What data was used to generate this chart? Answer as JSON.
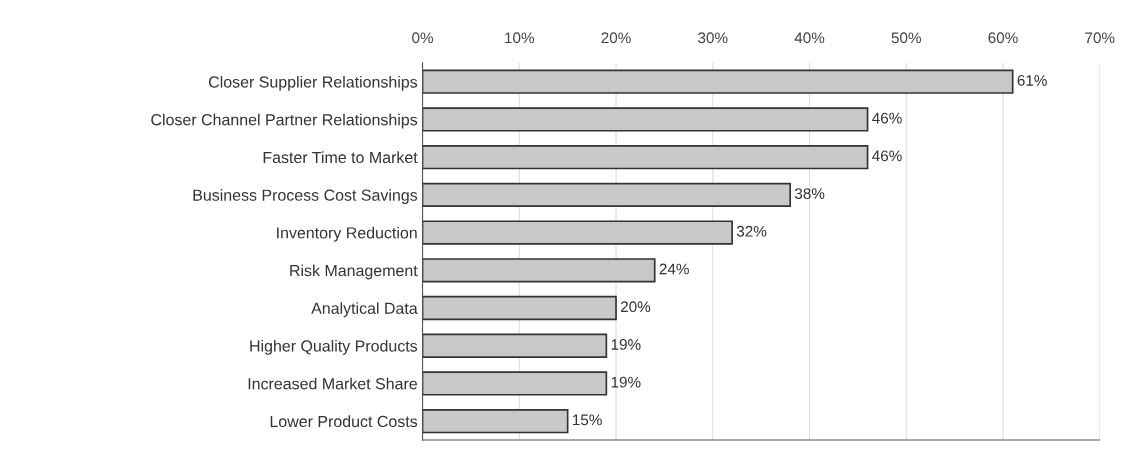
{
  "chart_data": {
    "type": "bar",
    "orientation": "horizontal",
    "categories": [
      "Closer Supplier Relationships",
      "Closer Channel Partner Relationships",
      "Faster Time to Market",
      "Business Process Cost Savings",
      "Inventory Reduction",
      "Risk Management",
      "Analytical Data",
      "Higher Quality Products",
      "Increased Market Share",
      "Lower Product Costs"
    ],
    "values": [
      61,
      46,
      46,
      38,
      32,
      24,
      20,
      19,
      19,
      15
    ],
    "value_labels": [
      "61%",
      "46%",
      "46%",
      "38%",
      "32%",
      "24%",
      "20%",
      "19%",
      "19%",
      "15%"
    ],
    "color": "#c8c8c8",
    "xlim": [
      0,
      70
    ],
    "xticks": [
      {
        "value": 0,
        "label": "0%"
      },
      {
        "value": 10,
        "label": "10%"
      },
      {
        "value": 20,
        "label": "20%"
      },
      {
        "value": 30,
        "label": "30%"
      },
      {
        "value": 40,
        "label": "40%"
      },
      {
        "value": 50,
        "label": "50%"
      },
      {
        "value": 60,
        "label": "60%"
      },
      {
        "value": 70,
        "label": "70%"
      }
    ],
    "grid": "x"
  }
}
